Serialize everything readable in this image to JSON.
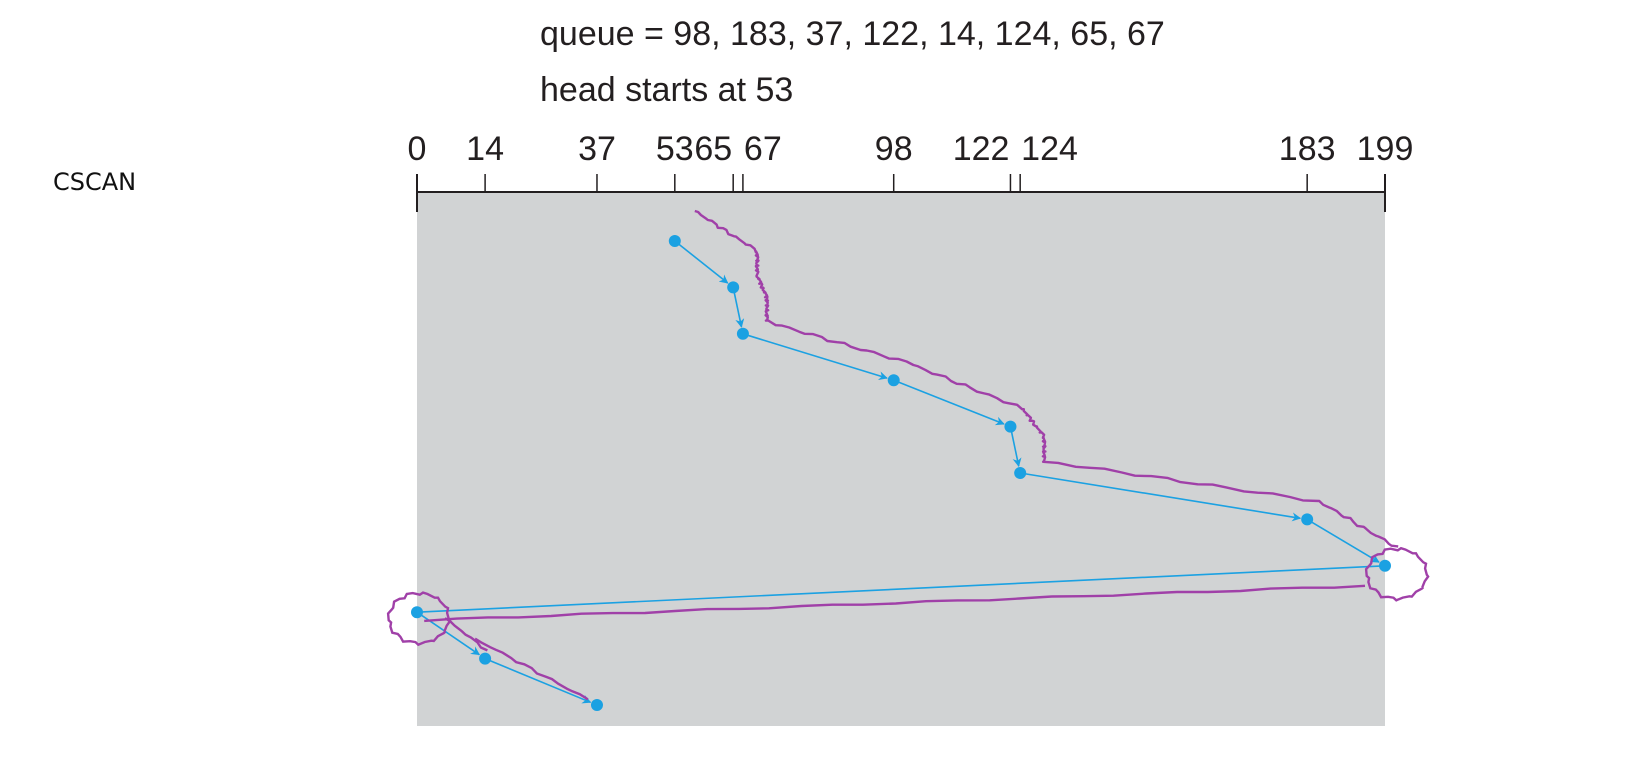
{
  "caption": {
    "queue_line": "queue = 98, 183, 37, 122, 14, 124, 65, 67",
    "head_line": "head starts at 53"
  },
  "algorithm_label": "CSCAN",
  "axis": {
    "min": 0,
    "max": 199,
    "ticks": [
      0,
      14,
      37,
      53,
      65,
      67,
      98,
      122,
      124,
      183,
      199
    ]
  },
  "path": {
    "sequence": [
      53,
      65,
      67,
      98,
      122,
      124,
      183,
      199,
      0,
      14,
      37
    ],
    "color": "#1ba1e2"
  },
  "annotation_color": "#a040a8",
  "panel_color": "#d1d3d4"
}
